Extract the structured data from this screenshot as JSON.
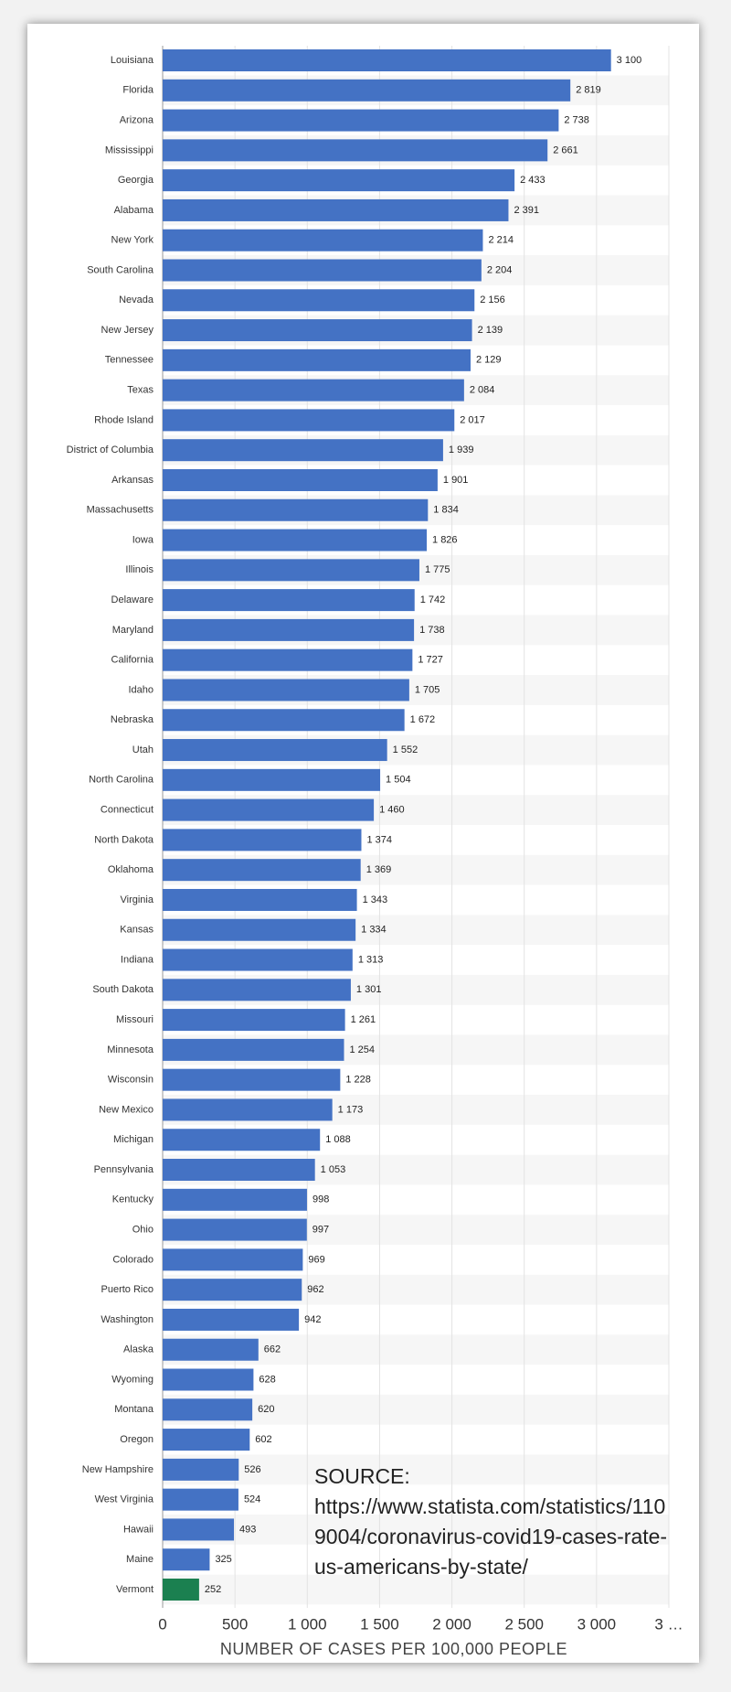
{
  "chart_data": {
    "type": "barh",
    "x_label": "NUMBER OF CASES PER 100,000 PEOPLE",
    "annotation": "SOURCE: https://www.statista.com/statistics/1109004/coronavirus-covid19-cases-rate-us-americans-by-state/",
    "categories": [
      "Louisiana",
      "Florida",
      "Arizona",
      "Mississippi",
      "Georgia",
      "Alabama",
      "New York",
      "South Carolina",
      "Nevada",
      "New Jersey",
      "Tennessee",
      "Texas",
      "Rhode Island",
      "District of Columbia",
      "Arkansas",
      "Massachusetts",
      "Iowa",
      "Illinois",
      "Delaware",
      "Maryland",
      "California",
      "Idaho",
      "Nebraska",
      "Utah",
      "North Carolina",
      "Connecticut",
      "North Dakota",
      "Oklahoma",
      "Virginia",
      "Kansas",
      "Indiana",
      "South Dakota",
      "Missouri",
      "Minnesota",
      "Wisconsin",
      "New Mexico",
      "Michigan",
      "Pennsylvania",
      "Kentucky",
      "Ohio",
      "Colorado",
      "Puerto Rico",
      "Washington",
      "Alaska",
      "Wyoming",
      "Montana",
      "Oregon",
      "New Hampshire",
      "West Virginia",
      "Hawaii",
      "Maine",
      "Vermont"
    ],
    "values": [
      3100,
      2819,
      2738,
      2661,
      2433,
      2391,
      2214,
      2204,
      2156,
      2139,
      2129,
      2084,
      2017,
      1939,
      1901,
      1834,
      1826,
      1775,
      1742,
      1738,
      1727,
      1705,
      1672,
      1552,
      1504,
      1460,
      1374,
      1369,
      1343,
      1334,
      1313,
      1301,
      1261,
      1254,
      1228,
      1173,
      1088,
      1053,
      998,
      997,
      969,
      962,
      942,
      662,
      628,
      620,
      602,
      526,
      524,
      493,
      325,
      252
    ],
    "value_labels": [
      "3 100",
      "2 819",
      "2 738",
      "2 661",
      "2 433",
      "2 391",
      "2 214",
      "2 204",
      "2 156",
      "2 139",
      "2 129",
      "2 084",
      "2 017",
      "1 939",
      "1 901",
      "1 834",
      "1 826",
      "1 775",
      "1 742",
      "1 738",
      "1 727",
      "1 705",
      "1 672",
      "1 552",
      "1 504",
      "1 460",
      "1 374",
      "1 369",
      "1 343",
      "1 334",
      "1 313",
      "1 301",
      "1 261",
      "1 254",
      "1 228",
      "1 173",
      "1 088",
      "1 053",
      "998",
      "997",
      "969",
      "962",
      "942",
      "662",
      "628",
      "620",
      "602",
      "526",
      "524",
      "493",
      "325",
      "252"
    ],
    "colors": [
      "#4472c4",
      "#4472c4",
      "#4472c4",
      "#4472c4",
      "#4472c4",
      "#4472c4",
      "#4472c4",
      "#4472c4",
      "#4472c4",
      "#4472c4",
      "#4472c4",
      "#4472c4",
      "#4472c4",
      "#4472c4",
      "#4472c4",
      "#4472c4",
      "#4472c4",
      "#4472c4",
      "#4472c4",
      "#4472c4",
      "#4472c4",
      "#4472c4",
      "#4472c4",
      "#4472c4",
      "#4472c4",
      "#4472c4",
      "#4472c4",
      "#4472c4",
      "#4472c4",
      "#4472c4",
      "#4472c4",
      "#4472c4",
      "#4472c4",
      "#4472c4",
      "#4472c4",
      "#4472c4",
      "#4472c4",
      "#4472c4",
      "#4472c4",
      "#4472c4",
      "#4472c4",
      "#4472c4",
      "#4472c4",
      "#4472c4",
      "#4472c4",
      "#4472c4",
      "#4472c4",
      "#4472c4",
      "#4472c4",
      "#4472c4",
      "#4472c4",
      "#1b8050"
    ],
    "xlim": [
      0,
      3500
    ],
    "xticks": [
      0,
      500,
      {
        "value": 1000,
        "label": "1 000"
      },
      {
        "value": 1500,
        "label": "1 500"
      },
      {
        "value": 2000,
        "label": "2 000"
      },
      {
        "value": 2500,
        "label": "2 500"
      },
      {
        "value": 3000,
        "label": "3 000"
      },
      {
        "value": 3500,
        "label": "3 …"
      }
    ],
    "grid": true,
    "striped_rows": true
  }
}
